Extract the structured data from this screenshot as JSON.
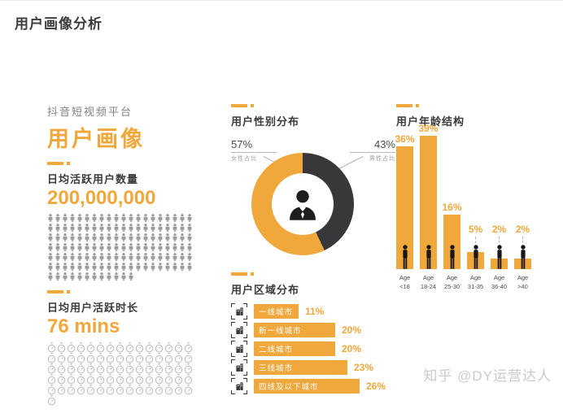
{
  "page_title": "用户画像分析",
  "watermark": "知乎 @DY运营达人",
  "colors": {
    "accent": "#F0A73C",
    "dark": "#38383A",
    "icon_gray": "#9B9B9B",
    "clock_gray": "#BCBCBC"
  },
  "left": {
    "platform_label": "抖音短视频平台",
    "headline": "用户画像",
    "dau": {
      "label": "日均活跃用户数量",
      "value": "200,000,000",
      "icon": "person-icon",
      "icon_rows": [
        20,
        20,
        20,
        20,
        20,
        20,
        12
      ]
    },
    "duration": {
      "label": "日均用户活跃时长",
      "value": "76 mins",
      "icon": "stopwatch-icon",
      "icon_rows": [
        15,
        15,
        15,
        15,
        15,
        1
      ]
    }
  },
  "gender": {
    "heading": "用户性别分布",
    "center_icon": "person-bust-icon",
    "segments": [
      {
        "name": "female",
        "pct": "57%",
        "value": 57,
        "label": "女性占比",
        "color": "#F0A73C"
      },
      {
        "name": "male",
        "pct": "43%",
        "value": 43,
        "label": "男性占比",
        "color": "#38383A"
      }
    ]
  },
  "region": {
    "heading": "用户区域分布",
    "rows": [
      {
        "label": "一线城市",
        "pct": "11%",
        "value": 11,
        "icon": "tier1-city-building-icon"
      },
      {
        "label": "新一线城市",
        "pct": "20%",
        "value": 20,
        "icon": "new-tier1-city-building-icon"
      },
      {
        "label": "二线城市",
        "pct": "20%",
        "value": 20,
        "icon": "tier2-city-building-icon"
      },
      {
        "label": "三线城市",
        "pct": "23%",
        "value": 23,
        "icon": "tier3-city-building-icon"
      },
      {
        "label": "四线及以下城市",
        "pct": "26%",
        "value": 26,
        "icon": "tier4-city-building-icon"
      }
    ]
  },
  "age": {
    "heading": "用户年龄结构",
    "age_word": "Age",
    "bars": [
      {
        "range": "<18",
        "pct": "36%",
        "value": 36
      },
      {
        "range": "18-24",
        "pct": "39%",
        "value": 39
      },
      {
        "range": "25-30",
        "pct": "16%",
        "value": 16
      },
      {
        "range": "31-35",
        "pct": "5%",
        "value": 5
      },
      {
        "range": "36-40",
        "pct": "2%",
        "value": 2
      },
      {
        "range": ">40",
        "pct": "2%",
        "value": 2
      }
    ]
  },
  "chart_data": [
    {
      "type": "pie",
      "title": "用户性别分布",
      "labels": [
        "女性占比",
        "男性占比"
      ],
      "values": [
        57,
        43
      ],
      "colors": [
        "#F0A73C",
        "#38383A"
      ],
      "donut": true,
      "legend_position": "callouts-top"
    },
    {
      "type": "bar",
      "orientation": "horizontal",
      "title": "用户区域分布",
      "categories": [
        "一线城市",
        "新一线城市",
        "二线城市",
        "三线城市",
        "四线及以下城市"
      ],
      "values": [
        11,
        20,
        20,
        23,
        26
      ],
      "unit": "%",
      "xlim": [
        0,
        30
      ],
      "grid": false
    },
    {
      "type": "bar",
      "orientation": "vertical",
      "title": "用户年龄结构",
      "xlabel": "Age",
      "categories": [
        "<18",
        "18-24",
        "25-30",
        "31-35",
        "36-40",
        ">40"
      ],
      "values": [
        36,
        39,
        16,
        5,
        2,
        2
      ],
      "unit": "%",
      "ylim": [
        0,
        45
      ],
      "grid": false
    },
    {
      "type": "table",
      "title": "KPI",
      "categories": [
        "日均活跃用户数量",
        "日均用户活跃时长"
      ],
      "values": [
        "200,000,000",
        "76 mins"
      ]
    }
  ]
}
